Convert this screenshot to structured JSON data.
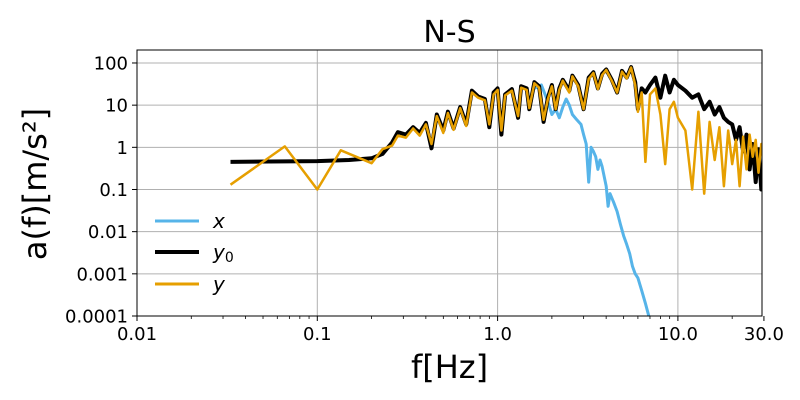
{
  "chart_data": {
    "type": "line",
    "title": "N-S",
    "xlabel": "f[Hz]",
    "ylabel": "a(f)[m/s²]",
    "xscale": "log",
    "yscale": "log",
    "xlim": [
      0.01,
      30.0
    ],
    "ylim": [
      0.0001,
      200
    ],
    "grid": true,
    "legend_position": "lower left",
    "x_ticks": [
      "0.01",
      "0.1",
      "1.0",
      "10.0",
      "30.0"
    ],
    "y_ticks": [
      "0.0001",
      "0.001",
      "0.01",
      "0.1",
      "1",
      "10",
      "100"
    ],
    "series": [
      {
        "name": "x",
        "legend_label": "x",
        "color": "#56B4E9",
        "linewidth": 3,
        "points": [
          [
            1.6,
            25
          ],
          [
            1.75,
            30
          ],
          [
            1.9,
            12
          ],
          [
            2.0,
            6
          ],
          [
            2.1,
            8
          ],
          [
            2.2,
            5
          ],
          [
            2.3,
            9
          ],
          [
            2.4,
            14
          ],
          [
            2.5,
            10
          ],
          [
            2.6,
            6
          ],
          [
            2.75,
            4.5
          ],
          [
            2.9,
            3.5
          ],
          [
            3.0,
            2.0
          ],
          [
            3.1,
            1.2
          ],
          [
            3.2,
            0.15
          ],
          [
            3.3,
            1.0
          ],
          [
            3.4,
            0.8
          ],
          [
            3.5,
            0.6
          ],
          [
            3.6,
            0.3
          ],
          [
            3.7,
            0.5
          ],
          [
            3.8,
            0.35
          ],
          [
            4.0,
            0.12
          ],
          [
            4.1,
            0.04
          ],
          [
            4.2,
            0.08
          ],
          [
            4.4,
            0.05
          ],
          [
            4.6,
            0.03
          ],
          [
            4.8,
            0.015
          ],
          [
            5.0,
            0.008
          ],
          [
            5.2,
            0.005
          ],
          [
            5.4,
            0.003
          ],
          [
            5.6,
            0.0015
          ],
          [
            5.8,
            0.001
          ],
          [
            6.0,
            0.0008
          ],
          [
            6.3,
            0.0004
          ],
          [
            6.6,
            0.0002
          ],
          [
            6.9,
            0.0001
          ]
        ]
      },
      {
        "name": "y0",
        "legend_label": "y",
        "legend_subscript": "0",
        "color": "#000000",
        "linewidth": 4,
        "points": [
          [
            0.033,
            0.45
          ],
          [
            0.1,
            0.47
          ],
          [
            0.15,
            0.5
          ],
          [
            0.2,
            0.55
          ],
          [
            0.23,
            0.7
          ],
          [
            0.26,
            1.3
          ],
          [
            0.28,
            2.3
          ],
          [
            0.31,
            2.0
          ],
          [
            0.34,
            3.0
          ],
          [
            0.37,
            2.2
          ],
          [
            0.4,
            3.8
          ],
          [
            0.43,
            0.95
          ],
          [
            0.46,
            6.0
          ],
          [
            0.5,
            2.5
          ],
          [
            0.53,
            7.0
          ],
          [
            0.57,
            2.8
          ],
          [
            0.62,
            9.0
          ],
          [
            0.67,
            3.5
          ],
          [
            0.72,
            22
          ],
          [
            0.78,
            16
          ],
          [
            0.85,
            14
          ],
          [
            0.9,
            3.0
          ],
          [
            0.95,
            20
          ],
          [
            1.0,
            25
          ],
          [
            1.05,
            2.0
          ],
          [
            1.1,
            18
          ],
          [
            1.2,
            24
          ],
          [
            1.3,
            5.0
          ],
          [
            1.35,
            28
          ],
          [
            1.45,
            25
          ],
          [
            1.5,
            8
          ],
          [
            1.6,
            35
          ],
          [
            1.7,
            28
          ],
          [
            1.8,
            4
          ],
          [
            1.9,
            15
          ],
          [
            2.0,
            30
          ],
          [
            2.1,
            8
          ],
          [
            2.2,
            25
          ],
          [
            2.3,
            40
          ],
          [
            2.5,
            22
          ],
          [
            2.6,
            50
          ],
          [
            2.8,
            30
          ],
          [
            3.0,
            8
          ],
          [
            3.2,
            45
          ],
          [
            3.4,
            60
          ],
          [
            3.6,
            25
          ],
          [
            3.8,
            55
          ],
          [
            4.0,
            70
          ],
          [
            4.3,
            40
          ],
          [
            4.6,
            20
          ],
          [
            4.9,
            65
          ],
          [
            5.2,
            45
          ],
          [
            5.5,
            80
          ],
          [
            5.8,
            35
          ],
          [
            6.0,
            8
          ],
          [
            6.3,
            25
          ],
          [
            6.6,
            20
          ],
          [
            7.0,
            30
          ],
          [
            7.5,
            45
          ],
          [
            8.0,
            15
          ],
          [
            8.5,
            50
          ],
          [
            9.0,
            20
          ],
          [
            9.5,
            40
          ],
          [
            10.0,
            30
          ],
          [
            11,
            22
          ],
          [
            12,
            15
          ],
          [
            13,
            18
          ],
          [
            14,
            8
          ],
          [
            15,
            12
          ],
          [
            16,
            6
          ],
          [
            17,
            9
          ],
          [
            18,
            5
          ],
          [
            19,
            4
          ],
          [
            20,
            3.5
          ],
          [
            21,
            1.5
          ],
          [
            22,
            3
          ],
          [
            23,
            0.8
          ],
          [
            24,
            2
          ],
          [
            25,
            0.3
          ],
          [
            26,
            1.2
          ],
          [
            27,
            0.15
          ],
          [
            28,
            0.9
          ],
          [
            29,
            0.1
          ],
          [
            30,
            0.5
          ]
        ]
      },
      {
        "name": "y",
        "legend_label": "y",
        "color": "#E69F00",
        "linewidth": 2.5,
        "points": [
          [
            0.033,
            0.13
          ],
          [
            0.066,
            1.05
          ],
          [
            0.1,
            0.1
          ],
          [
            0.135,
            0.85
          ],
          [
            0.2,
            0.42
          ],
          [
            0.23,
            0.9
          ],
          [
            0.26,
            1.1
          ],
          [
            0.28,
            1.9
          ],
          [
            0.31,
            1.7
          ],
          [
            0.34,
            2.8
          ],
          [
            0.37,
            1.9
          ],
          [
            0.4,
            3.5
          ],
          [
            0.43,
            1.2
          ],
          [
            0.46,
            5.5
          ],
          [
            0.5,
            2.2
          ],
          [
            0.53,
            6.5
          ],
          [
            0.57,
            2.6
          ],
          [
            0.62,
            8.5
          ],
          [
            0.67,
            3.2
          ],
          [
            0.72,
            20
          ],
          [
            0.78,
            15
          ],
          [
            0.85,
            13
          ],
          [
            0.9,
            3.5
          ],
          [
            0.95,
            18
          ],
          [
            1.0,
            23
          ],
          [
            1.05,
            2.5
          ],
          [
            1.1,
            17
          ],
          [
            1.2,
            22
          ],
          [
            1.3,
            5.5
          ],
          [
            1.35,
            26
          ],
          [
            1.45,
            23
          ],
          [
            1.5,
            8.5
          ],
          [
            1.6,
            33
          ],
          [
            1.7,
            26
          ],
          [
            1.8,
            4.5
          ],
          [
            1.9,
            14
          ],
          [
            2.0,
            28
          ],
          [
            2.1,
            8
          ],
          [
            2.2,
            23
          ],
          [
            2.3,
            38
          ],
          [
            2.5,
            20
          ],
          [
            2.6,
            48
          ],
          [
            2.8,
            28
          ],
          [
            3.0,
            8
          ],
          [
            3.2,
            42
          ],
          [
            3.4,
            58
          ],
          [
            3.6,
            24
          ],
          [
            3.8,
            52
          ],
          [
            4.0,
            68
          ],
          [
            4.3,
            38
          ],
          [
            4.6,
            20
          ],
          [
            4.9,
            62
          ],
          [
            5.2,
            43
          ],
          [
            5.5,
            78
          ],
          [
            5.8,
            30
          ],
          [
            6.0,
            7
          ],
          [
            6.3,
            20
          ],
          [
            6.6,
            0.45
          ],
          [
            7.0,
            18
          ],
          [
            7.5,
            25
          ],
          [
            8.0,
            6
          ],
          [
            8.5,
            0.4
          ],
          [
            9.0,
            8
          ],
          [
            9.5,
            12
          ],
          [
            10.0,
            5
          ],
          [
            11,
            2.5
          ],
          [
            12,
            0.1
          ],
          [
            13,
            7
          ],
          [
            14,
            0.08
          ],
          [
            15,
            4
          ],
          [
            16,
            0.5
          ],
          [
            17,
            3
          ],
          [
            18,
            0.12
          ],
          [
            19,
            2.5
          ],
          [
            20,
            0.4
          ],
          [
            21,
            1.5
          ],
          [
            22,
            0.12
          ],
          [
            23,
            1.8
          ],
          [
            24,
            0.3
          ],
          [
            25,
            2
          ],
          [
            26,
            0.6
          ],
          [
            27,
            1.5
          ],
          [
            28,
            0.25
          ],
          [
            29,
            1.2
          ],
          [
            30,
            0.4
          ]
        ]
      }
    ]
  }
}
